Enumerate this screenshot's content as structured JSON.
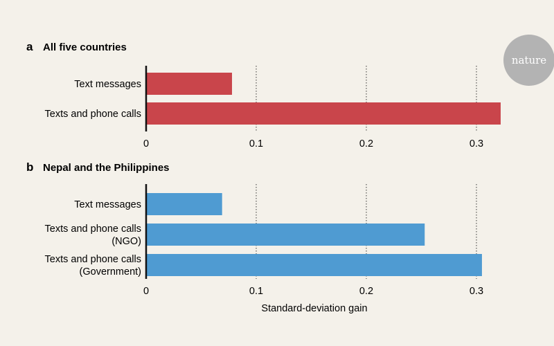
{
  "badge": {
    "text": "nature",
    "color": "#b3b3b3"
  },
  "chart_data": [
    {
      "type": "bar",
      "orientation": "horizontal",
      "panel": "a",
      "title": "All five countries",
      "categories": [
        [
          "Text messages"
        ],
        [
          "Texts and phone calls"
        ]
      ],
      "values": [
        0.078,
        0.322
      ],
      "color": "#c9454b",
      "xlim": [
        0,
        0.3
      ],
      "xticks": [
        0,
        0.1,
        0.2,
        0.3
      ],
      "xtick_labels": [
        "0",
        "0.1",
        "0.2",
        "0.3"
      ],
      "xlabel": "",
      "grid": "dotted vertical"
    },
    {
      "type": "bar",
      "orientation": "horizontal",
      "panel": "b",
      "title": "Nepal and the Philippines",
      "categories": [
        [
          "Text messages"
        ],
        [
          "Texts and phone calls",
          "(NGO)"
        ],
        [
          "Texts and phone calls",
          "(Government)"
        ]
      ],
      "values": [
        0.069,
        0.253,
        0.305
      ],
      "color": "#4f9bd2",
      "xlim": [
        0,
        0.3
      ],
      "xticks": [
        0,
        0.1,
        0.2,
        0.3
      ],
      "xtick_labels": [
        "0",
        "0.1",
        "0.2",
        "0.3"
      ],
      "xlabel": "Standard-deviation gain",
      "grid": "dotted vertical"
    }
  ]
}
